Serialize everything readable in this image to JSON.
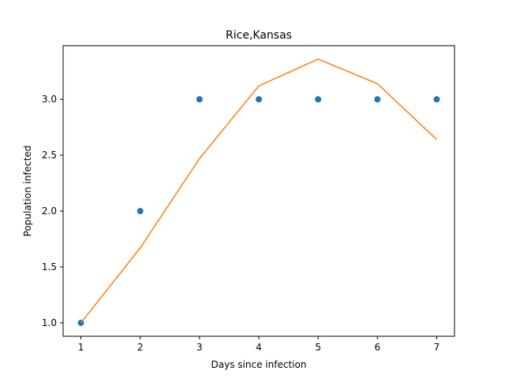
{
  "chart_data": {
    "type": "scatter",
    "title": "Rice,Kansas",
    "xlabel": "Days since infection",
    "ylabel": "Population infected",
    "xlim": [
      0.7,
      7.3
    ],
    "ylim": [
      0.88,
      3.48
    ],
    "x_ticks": [
      1,
      2,
      3,
      4,
      5,
      6,
      7
    ],
    "y_ticks": [
      1.0,
      1.5,
      2.0,
      2.5,
      3.0
    ],
    "y_tick_labels": [
      "1.0",
      "1.5",
      "2.0",
      "2.5",
      "3.0"
    ],
    "grid": false,
    "series": [
      {
        "kind": "scatter",
        "color": "#1f77b4",
        "x": [
          1,
          2,
          3,
          4,
          5,
          6,
          7
        ],
        "y": [
          1,
          2,
          3,
          3,
          3,
          3,
          3
        ]
      },
      {
        "kind": "line",
        "color": "#ff7f0e",
        "x": [
          1,
          2,
          3,
          4,
          5,
          6,
          7
        ],
        "y": [
          1.0,
          1.67,
          2.47,
          3.12,
          3.36,
          3.14,
          2.64
        ]
      }
    ]
  }
}
